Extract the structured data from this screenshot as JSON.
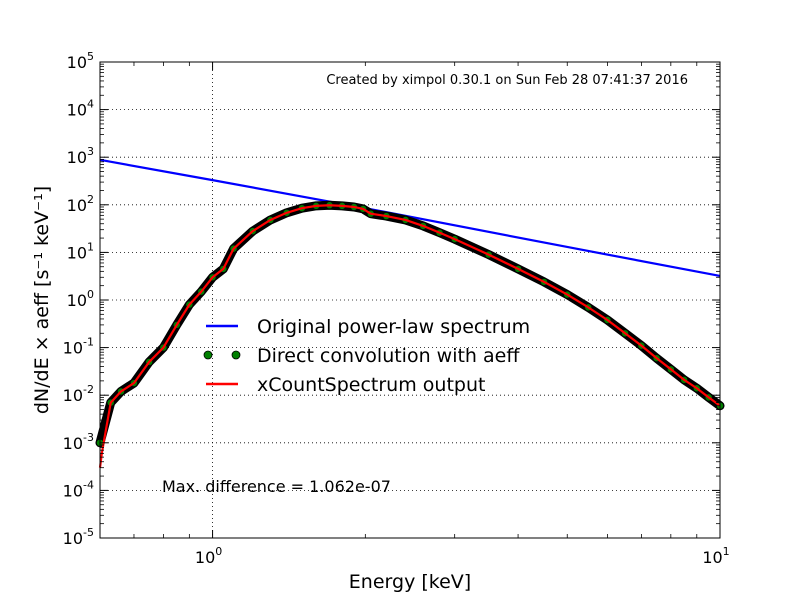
{
  "chart_data": {
    "type": "line",
    "title": "",
    "xlabel": "Energy [keV]",
    "ylabel": "dN/dE × aeff [s⁻¹ keV⁻¹]",
    "x_scale": "log",
    "y_scale": "log",
    "xlim": [
      0.6,
      10
    ],
    "ylim": [
      1e-05,
      100000
    ],
    "grid": true,
    "x_ticks": [
      {
        "value": 1,
        "base": "10",
        "exp": "0"
      },
      {
        "value": 10,
        "base": "10",
        "exp": "1"
      }
    ],
    "y_ticks": [
      {
        "value": 100000,
        "base": "10",
        "exp": "5"
      },
      {
        "value": 10000,
        "base": "10",
        "exp": "4"
      },
      {
        "value": 1000,
        "base": "10",
        "exp": "3"
      },
      {
        "value": 100,
        "base": "10",
        "exp": "2"
      },
      {
        "value": 10,
        "base": "10",
        "exp": "1"
      },
      {
        "value": 1,
        "base": "10",
        "exp": "0"
      },
      {
        "value": 0.1,
        "base": "10",
        "exp": "-1"
      },
      {
        "value": 0.01,
        "base": "10",
        "exp": "-2"
      },
      {
        "value": 0.001,
        "base": "10",
        "exp": "-3"
      },
      {
        "value": 0.0001,
        "base": "10",
        "exp": "-4"
      },
      {
        "value": 1e-05,
        "base": "10",
        "exp": "-5"
      }
    ],
    "legend_position": "center",
    "series": [
      {
        "name": "Original power-law spectrum",
        "kind": "line",
        "color": "#0000ff",
        "x": [
          0.6,
          1.0,
          2.0,
          5.0,
          10.0
        ],
        "y": [
          880,
          330,
          85,
          13,
          3.2
        ]
      },
      {
        "name": "Direct convolution with aeff",
        "kind": "markers",
        "color": "#008000",
        "edgecolor": "#000000",
        "x": [
          0.6,
          0.63,
          0.66,
          0.7,
          0.75,
          0.8,
          0.85,
          0.9,
          0.95,
          1.0,
          1.05,
          1.1,
          1.2,
          1.3,
          1.4,
          1.5,
          1.6,
          1.7,
          1.8,
          1.9,
          1.98,
          2.05,
          2.2,
          2.4,
          2.6,
          2.8,
          3.0,
          3.5,
          4.0,
          4.5,
          5.0,
          5.5,
          6.0,
          6.5,
          7.0,
          7.5,
          8.0,
          8.5,
          9.0,
          9.5,
          10.0
        ],
        "y": [
          0.001,
          0.007,
          0.012,
          0.018,
          0.05,
          0.1,
          0.3,
          0.8,
          1.5,
          3.0,
          4.5,
          12,
          28,
          48,
          68,
          85,
          95,
          98,
          95,
          90,
          82,
          65,
          58,
          48,
          36,
          26,
          19,
          9,
          4.5,
          2.4,
          1.3,
          0.7,
          0.38,
          0.2,
          0.11,
          0.06,
          0.035,
          0.021,
          0.014,
          0.009,
          0.006
        ]
      },
      {
        "name": "xCountSpectrum output",
        "kind": "line",
        "color": "#ff0000",
        "x": [
          0.6,
          0.605,
          0.61,
          0.63,
          0.66,
          0.7,
          0.75,
          0.8,
          0.85,
          0.9,
          0.95,
          1.0,
          1.05,
          1.1,
          1.2,
          1.3,
          1.4,
          1.5,
          1.6,
          1.7,
          1.8,
          1.9,
          1.98,
          2.05,
          2.2,
          2.4,
          2.6,
          2.8,
          3.0,
          3.5,
          4.0,
          4.5,
          5.0,
          5.5,
          6.0,
          6.5,
          7.0,
          7.5,
          8.0,
          8.5,
          9.0,
          9.5,
          10.0
        ],
        "y": [
          0.0003,
          0.0006,
          0.001,
          0.007,
          0.012,
          0.018,
          0.05,
          0.1,
          0.3,
          0.8,
          1.5,
          3.0,
          4.5,
          12,
          28,
          48,
          68,
          85,
          95,
          98,
          95,
          90,
          82,
          65,
          58,
          48,
          36,
          26,
          19,
          9,
          4.5,
          2.4,
          1.3,
          0.7,
          0.38,
          0.2,
          0.11,
          0.06,
          0.035,
          0.021,
          0.014,
          0.009,
          0.006
        ]
      }
    ],
    "annotations": [
      {
        "id": "created",
        "text": "Created by ximpol 0.30.1 on Sun Feb 28 07:41:37 2016"
      },
      {
        "id": "maxdiff",
        "text": "Max. difference = 1.062e-07"
      }
    ]
  }
}
